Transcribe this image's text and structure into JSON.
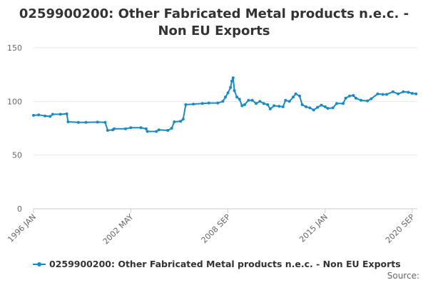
{
  "chart_data": {
    "type": "line",
    "title": "0259900200: Other Fabricated Metal products n.e.c. - Non EU Exports",
    "xlabel": "",
    "ylabel": "",
    "x_range": [
      "1996-01",
      "2021-01"
    ],
    "ylim": [
      0,
      150
    ],
    "y_ticks": [
      0,
      50,
      100,
      150
    ],
    "x_tick_labels": [
      {
        "date": "1996-01",
        "label": "1996 JAN"
      },
      {
        "date": "2002-05",
        "label": "2002 MAY"
      },
      {
        "date": "2008-09",
        "label": "2008 SEP"
      },
      {
        "date": "2015-01",
        "label": "2015 JAN"
      },
      {
        "date": "2020-09",
        "label": "2020 SEP"
      }
    ],
    "grid": true,
    "legend_position": "bottom",
    "color": "#1a8ac3",
    "series": [
      {
        "name": "0259900200: Other Fabricated Metal products n.e.c. - Non EU Exports",
        "points": [
          [
            "1996-01",
            87
          ],
          [
            "1996-05",
            87.5
          ],
          [
            "1996-10",
            86.5
          ],
          [
            "1997-02",
            86
          ],
          [
            "1997-04",
            88
          ],
          [
            "1997-10",
            88
          ],
          [
            "1998-03",
            88.5
          ],
          [
            "1998-04",
            81
          ],
          [
            "1998-12",
            80.5
          ],
          [
            "1999-06",
            80.5
          ],
          [
            "2000-03",
            80.7
          ],
          [
            "2000-09",
            80.5
          ],
          [
            "2000-11",
            73
          ],
          [
            "2001-03",
            73.5
          ],
          [
            "2001-04",
            74.5
          ],
          [
            "2002-01",
            74.5
          ],
          [
            "2002-05",
            75.5
          ],
          [
            "2003-01",
            75.5
          ],
          [
            "2003-05",
            74.5
          ],
          [
            "2003-06",
            72
          ],
          [
            "2004-01",
            72
          ],
          [
            "2004-03",
            73.5
          ],
          [
            "2004-10",
            73
          ],
          [
            "2005-01",
            75
          ],
          [
            "2005-03",
            81
          ],
          [
            "2005-08",
            81.5
          ],
          [
            "2005-10",
            83.5
          ],
          [
            "2005-12",
            97
          ],
          [
            "2006-06",
            97.5
          ],
          [
            "2007-01",
            98
          ],
          [
            "2007-06",
            98.5
          ],
          [
            "2008-01",
            98.5
          ],
          [
            "2008-05",
            100
          ],
          [
            "2008-07",
            104
          ],
          [
            "2008-09",
            108
          ],
          [
            "2008-11",
            113
          ],
          [
            "2008-12",
            119
          ],
          [
            "2009-01",
            122
          ],
          [
            "2009-02",
            110
          ],
          [
            "2009-04",
            104
          ],
          [
            "2009-06",
            102
          ],
          [
            "2009-08",
            96
          ],
          [
            "2009-10",
            97
          ],
          [
            "2010-01",
            101
          ],
          [
            "2010-04",
            101
          ],
          [
            "2010-07",
            98
          ],
          [
            "2010-10",
            100
          ],
          [
            "2011-01",
            98
          ],
          [
            "2011-04",
            97
          ],
          [
            "2011-06",
            93
          ],
          [
            "2011-09",
            96
          ],
          [
            "2012-01",
            95.5
          ],
          [
            "2012-04",
            95
          ],
          [
            "2012-06",
            101
          ],
          [
            "2012-09",
            100
          ],
          [
            "2012-12",
            104
          ],
          [
            "2013-02",
            107
          ],
          [
            "2013-05",
            105
          ],
          [
            "2013-07",
            97
          ],
          [
            "2013-10",
            95
          ],
          [
            "2014-01",
            94
          ],
          [
            "2014-04",
            92
          ],
          [
            "2014-07",
            94.5
          ],
          [
            "2014-10",
            96.5
          ],
          [
            "2015-01",
            95
          ],
          [
            "2015-03",
            93.5
          ],
          [
            "2015-07",
            94
          ],
          [
            "2015-10",
            98
          ],
          [
            "2016-03",
            98
          ],
          [
            "2016-05",
            103
          ],
          [
            "2016-08",
            105
          ],
          [
            "2016-11",
            105.5
          ],
          [
            "2017-01",
            103
          ],
          [
            "2017-05",
            101
          ],
          [
            "2017-10",
            100.5
          ],
          [
            "2018-01",
            102.5
          ],
          [
            "2018-06",
            107
          ],
          [
            "2018-10",
            106.5
          ],
          [
            "2019-01",
            106.5
          ],
          [
            "2019-06",
            109
          ],
          [
            "2019-10",
            107
          ],
          [
            "2020-02",
            109
          ],
          [
            "2020-06",
            108.5
          ],
          [
            "2020-09",
            107.5
          ],
          [
            "2020-12",
            107
          ]
        ]
      }
    ]
  },
  "legend": {
    "label": "0259900200: Other Fabricated Metal products n.e.c. - Non EU Exports"
  },
  "source": {
    "label": "Source:"
  }
}
